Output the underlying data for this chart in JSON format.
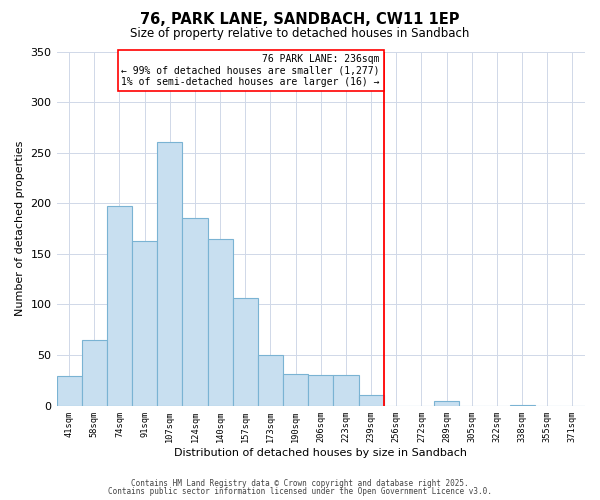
{
  "title": "76, PARK LANE, SANDBACH, CW11 1EP",
  "subtitle": "Size of property relative to detached houses in Sandbach",
  "xlabel": "Distribution of detached houses by size in Sandbach",
  "ylabel": "Number of detached properties",
  "bar_color": "#c8dff0",
  "bar_edge_color": "#7ab3d3",
  "tick_labels": [
    "41sqm",
    "58sqm",
    "74sqm",
    "91sqm",
    "107sqm",
    "124sqm",
    "140sqm",
    "157sqm",
    "173sqm",
    "190sqm",
    "206sqm",
    "223sqm",
    "239sqm",
    "256sqm",
    "272sqm",
    "289sqm",
    "305sqm",
    "322sqm",
    "338sqm",
    "355sqm",
    "371sqm"
  ],
  "bar_heights": [
    29,
    65,
    197,
    163,
    261,
    185,
    165,
    106,
    50,
    31,
    30,
    30,
    10,
    0,
    0,
    5,
    0,
    0,
    1,
    0,
    0
  ],
  "ylim": [
    0,
    350
  ],
  "yticks": [
    0,
    50,
    100,
    150,
    200,
    250,
    300,
    350
  ],
  "vline_index": 13,
  "vline_label": "76 PARK LANE: 236sqm",
  "annotation_line1": "← 99% of detached houses are smaller (1,277)",
  "annotation_line2": "1% of semi-detached houses are larger (16) →",
  "footnote1": "Contains HM Land Registry data © Crown copyright and database right 2025.",
  "footnote2": "Contains public sector information licensed under the Open Government Licence v3.0.",
  "background_color": "#ffffff",
  "grid_color": "#d0d8e8"
}
